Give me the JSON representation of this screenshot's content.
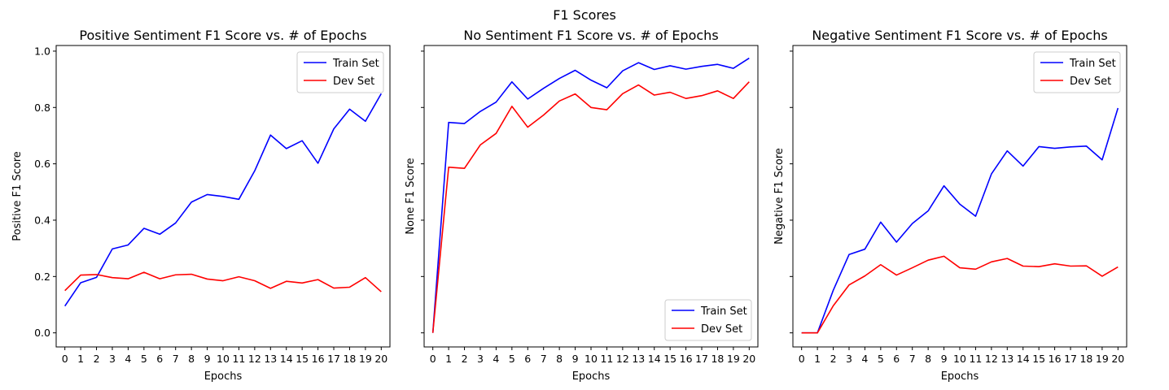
{
  "figure_title": "F1 Scores",
  "chart_data": [
    {
      "type": "line",
      "title": "Positive Sentiment F1 Score vs. # of Epochs",
      "xlabel": "Epochs",
      "ylabel": "Positive F1 Score",
      "x": [
        0,
        1,
        2,
        3,
        4,
        5,
        6,
        7,
        8,
        9,
        10,
        11,
        12,
        13,
        14,
        15,
        16,
        17,
        18,
        19,
        20
      ],
      "ylim": [
        -0.05,
        1.02
      ],
      "yticks": [
        "0.0",
        "0.2",
        "0.4",
        "0.6",
        "0.8",
        "1.0"
      ],
      "show_ytick_labels": true,
      "legend_position": "top-right",
      "grid": false,
      "series": [
        {
          "name": "Train Set",
          "color": "#0000ff",
          "values": [
            0.095,
            0.178,
            0.197,
            0.298,
            0.312,
            0.371,
            0.35,
            0.39,
            0.464,
            0.491,
            0.484,
            0.474,
            0.575,
            0.702,
            0.654,
            0.682,
            0.602,
            0.724,
            0.794,
            0.751,
            0.849
          ]
        },
        {
          "name": "Dev Set",
          "color": "#ff0000",
          "values": [
            0.15,
            0.205,
            0.207,
            0.196,
            0.192,
            0.215,
            0.192,
            0.206,
            0.208,
            0.191,
            0.185,
            0.199,
            0.185,
            0.158,
            0.183,
            0.177,
            0.189,
            0.159,
            0.162,
            0.196,
            0.146
          ]
        }
      ]
    },
    {
      "type": "line",
      "title": "No Sentiment F1 Score vs. # of Epochs",
      "xlabel": "Epochs",
      "ylabel": "None F1 Score",
      "x": [
        0,
        1,
        2,
        3,
        4,
        5,
        6,
        7,
        8,
        9,
        10,
        11,
        12,
        13,
        14,
        15,
        16,
        17,
        18,
        19,
        20
      ],
      "ylim": [
        -0.05,
        1.02
      ],
      "yticks": [
        "0.0",
        "0.2",
        "0.4",
        "0.6",
        "0.8",
        "1.0"
      ],
      "show_ytick_labels": false,
      "legend_position": "bottom-right",
      "grid": false,
      "series": [
        {
          "name": "Train Set",
          "color": "#0000ff",
          "values": [
            0.0,
            0.747,
            0.743,
            0.786,
            0.819,
            0.891,
            0.83,
            0.868,
            0.903,
            0.932,
            0.897,
            0.87,
            0.93,
            0.959,
            0.935,
            0.948,
            0.936,
            0.946,
            0.953,
            0.939,
            0.975
          ]
        },
        {
          "name": "Dev Set",
          "color": "#ff0000",
          "values": [
            0.0,
            0.588,
            0.584,
            0.667,
            0.708,
            0.804,
            0.73,
            0.773,
            0.823,
            0.848,
            0.8,
            0.792,
            0.849,
            0.88,
            0.844,
            0.854,
            0.832,
            0.842,
            0.859,
            0.832,
            0.891
          ]
        }
      ]
    },
    {
      "type": "line",
      "title": "Negative Sentiment F1 Score vs. # of Epochs",
      "xlabel": "Epochs",
      "ylabel": "Negative F1 Score",
      "x": [
        0,
        1,
        2,
        3,
        4,
        5,
        6,
        7,
        8,
        9,
        10,
        11,
        12,
        13,
        14,
        15,
        16,
        17,
        18,
        19,
        20
      ],
      "ylim": [
        -0.05,
        1.02
      ],
      "yticks": [
        "0.0",
        "0.2",
        "0.4",
        "0.6",
        "0.8",
        "1.0"
      ],
      "show_ytick_labels": false,
      "legend_position": "top-right",
      "grid": false,
      "series": [
        {
          "name": "Train Set",
          "color": "#0000ff",
          "values": [
            0.0,
            0.0,
            0.151,
            0.278,
            0.297,
            0.393,
            0.322,
            0.388,
            0.433,
            0.522,
            0.457,
            0.414,
            0.564,
            0.646,
            0.592,
            0.661,
            0.655,
            0.66,
            0.663,
            0.614,
            0.798
          ]
        },
        {
          "name": "Dev Set",
          "color": "#ff0000",
          "values": [
            0.0,
            0.0,
            0.096,
            0.17,
            0.202,
            0.242,
            0.205,
            0.231,
            0.258,
            0.272,
            0.231,
            0.226,
            0.252,
            0.264,
            0.237,
            0.235,
            0.245,
            0.237,
            0.238,
            0.201,
            0.234
          ]
        }
      ]
    }
  ]
}
